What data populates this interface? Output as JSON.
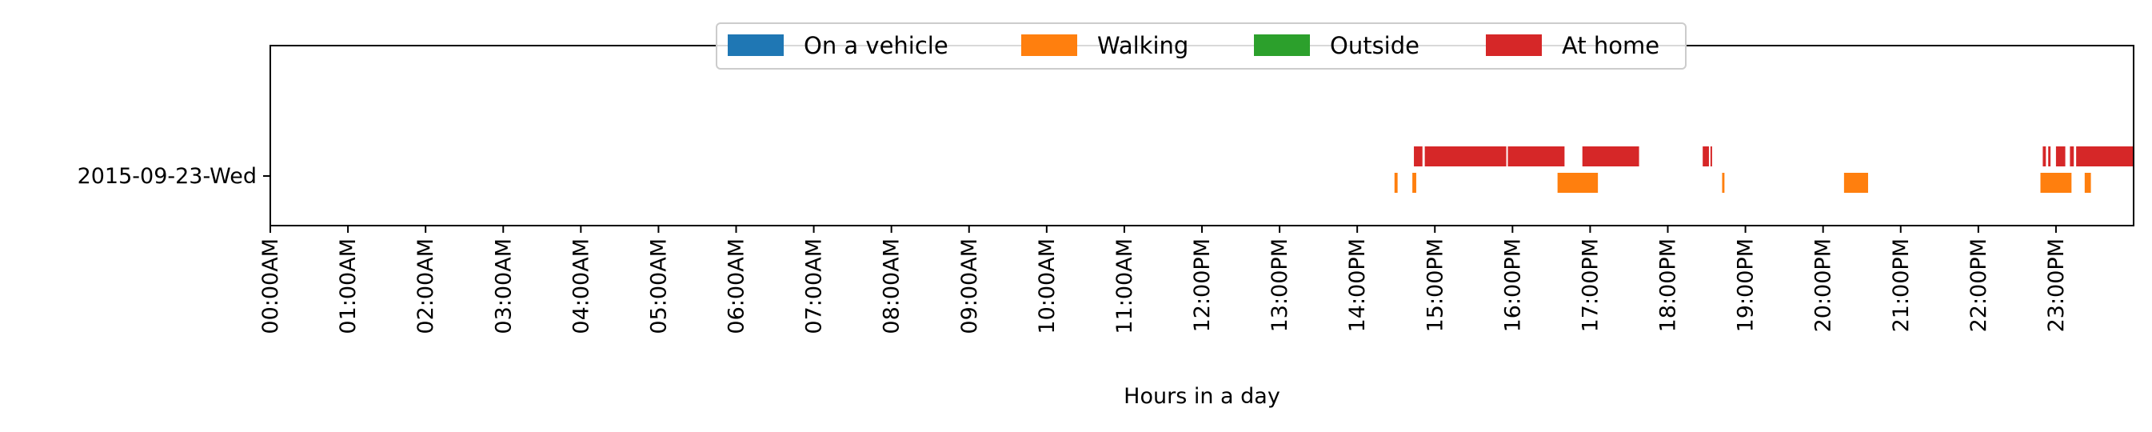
{
  "chart_data": {
    "type": "timeline",
    "title": "",
    "xlabel": "Hours in a day",
    "ylabel": "",
    "xlim": [
      0,
      24
    ],
    "x_unit": "hours",
    "x_tick_labels": [
      "00:00AM",
      "01:00AM",
      "02:00AM",
      "03:00AM",
      "04:00AM",
      "05:00AM",
      "06:00AM",
      "07:00AM",
      "08:00AM",
      "09:00AM",
      "10:00AM",
      "11:00AM",
      "12:00PM",
      "13:00PM",
      "14:00PM",
      "15:00PM",
      "16:00PM",
      "17:00PM",
      "18:00PM",
      "19:00PM",
      "20:00PM",
      "21:00PM",
      "22:00PM",
      "23:00PM"
    ],
    "categories": [
      "2015-09-23-Wed"
    ],
    "grid": false,
    "legend_position": "top-center",
    "legend": [
      {
        "label": "On a vehicle",
        "color": "#1f77b4"
      },
      {
        "label": "Walking",
        "color": "#ff7f0e"
      },
      {
        "label": "Outside",
        "color": "#2ca02c"
      },
      {
        "label": "At home",
        "color": "#d62728"
      }
    ],
    "series": [
      {
        "name": "On a vehicle",
        "color": "#1f77b4",
        "intervals": []
      },
      {
        "name": "Walking",
        "color": "#ff7f0e",
        "intervals": [
          [
            14.48,
            14.52
          ],
          [
            14.71,
            14.76
          ],
          [
            16.58,
            17.1
          ],
          [
            18.7,
            18.73
          ],
          [
            20.27,
            20.58
          ],
          [
            22.8,
            23.2
          ],
          [
            23.37,
            23.45
          ]
        ]
      },
      {
        "name": "Outside",
        "color": "#2ca02c",
        "intervals": []
      },
      {
        "name": "At home",
        "color": "#d62728",
        "intervals": [
          [
            14.73,
            14.84
          ],
          [
            14.87,
            15.92
          ],
          [
            15.94,
            16.67
          ],
          [
            16.9,
            17.63
          ],
          [
            18.45,
            18.53
          ],
          [
            18.55,
            18.57
          ],
          [
            22.83,
            22.87
          ],
          [
            22.9,
            22.93
          ],
          [
            23.0,
            23.12
          ],
          [
            23.18,
            23.23
          ],
          [
            23.26,
            24.0
          ]
        ]
      }
    ]
  }
}
